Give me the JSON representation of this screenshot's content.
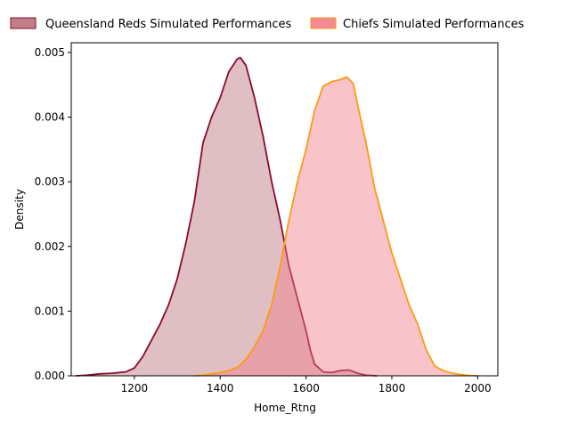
{
  "chart_data": {
    "type": "area",
    "title": "",
    "xlabel": "Home_Rtng",
    "ylabel": "Density",
    "xlim": [
      1053,
      2047
    ],
    "ylim": [
      0,
      0.00515
    ],
    "xticks": [
      1200,
      1400,
      1600,
      1800,
      2000
    ],
    "xtick_labels": [
      "1200",
      "1400",
      "1600",
      "1800",
      "2000"
    ],
    "yticks": [
      0,
      0.001,
      0.002,
      0.003,
      0.004,
      0.005
    ],
    "ytick_labels": [
      "0.000",
      "0.001",
      "0.002",
      "0.003",
      "0.004",
      "0.005"
    ],
    "grid": false,
    "legend": {
      "placement": "top, above plot, two columns"
    },
    "series": [
      {
        "name": "Queensland Reds Simulated Performances",
        "line_color": "#8b0a2d",
        "fill_color": "#b8707c",
        "fill_opacity": 0.45,
        "x": [
          1064,
          1090,
          1120,
          1150,
          1180,
          1200,
          1220,
          1240,
          1260,
          1280,
          1300,
          1320,
          1340,
          1360,
          1380,
          1400,
          1420,
          1440,
          1447,
          1460,
          1480,
          1500,
          1520,
          1540,
          1560,
          1580,
          1600,
          1610,
          1620,
          1640,
          1660,
          1680,
          1700,
          1720,
          1740,
          1765
        ],
        "y": [
          0.0,
          1e-05,
          3e-05,
          4e-05,
          6e-05,
          0.00012,
          0.0003,
          0.00055,
          0.0008,
          0.0011,
          0.0015,
          0.00205,
          0.0027,
          0.0036,
          0.004,
          0.0043,
          0.0047,
          0.0049,
          0.00492,
          0.0048,
          0.0043,
          0.0037,
          0.003,
          0.0024,
          0.0017,
          0.0012,
          0.0007,
          0.0004,
          0.00018,
          6e-05,
          5e-05,
          8e-05,
          9e-05,
          4e-05,
          1e-05,
          0.0
        ]
      },
      {
        "name": "Chiefs Simulated Performances",
        "line_color": "#ff9a10",
        "fill_color": "#f07d8a",
        "fill_opacity": 0.45,
        "x": [
          1338,
          1360,
          1380,
          1400,
          1420,
          1440,
          1460,
          1480,
          1500,
          1520,
          1540,
          1560,
          1580,
          1600,
          1620,
          1640,
          1660,
          1680,
          1695,
          1710,
          1720,
          1740,
          1760,
          1780,
          1800,
          1820,
          1840,
          1860,
          1880,
          1900,
          1920,
          1940,
          1960,
          1980,
          2000
        ],
        "y": [
          0.0,
          1e-05,
          3e-05,
          5e-05,
          8e-05,
          0.00013,
          0.00025,
          0.00045,
          0.0007,
          0.0011,
          0.0017,
          0.0024,
          0.003,
          0.0035,
          0.0041,
          0.00448,
          0.00455,
          0.00458,
          0.00462,
          0.00452,
          0.0042,
          0.0036,
          0.0029,
          0.0024,
          0.0019,
          0.0015,
          0.0011,
          0.0008,
          0.0004,
          0.00015,
          8e-05,
          4e-05,
          2e-05,
          5e-06,
          0.0
        ]
      }
    ]
  }
}
